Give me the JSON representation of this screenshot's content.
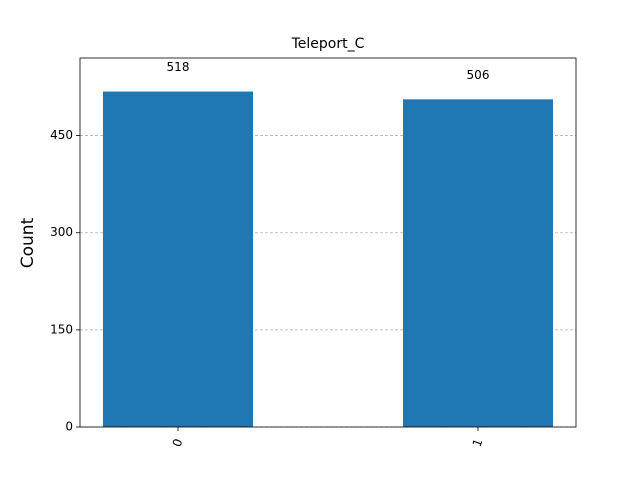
{
  "chart_data": {
    "type": "bar",
    "title": "Teleport_C",
    "y_label": "Count",
    "categories": [
      "0",
      "1"
    ],
    "values": [
      518,
      506
    ],
    "color": "#1f77b4",
    "ylim": [
      0,
      569.8
    ],
    "yticks": [
      0,
      150,
      300,
      450
    ],
    "grid": true
  }
}
